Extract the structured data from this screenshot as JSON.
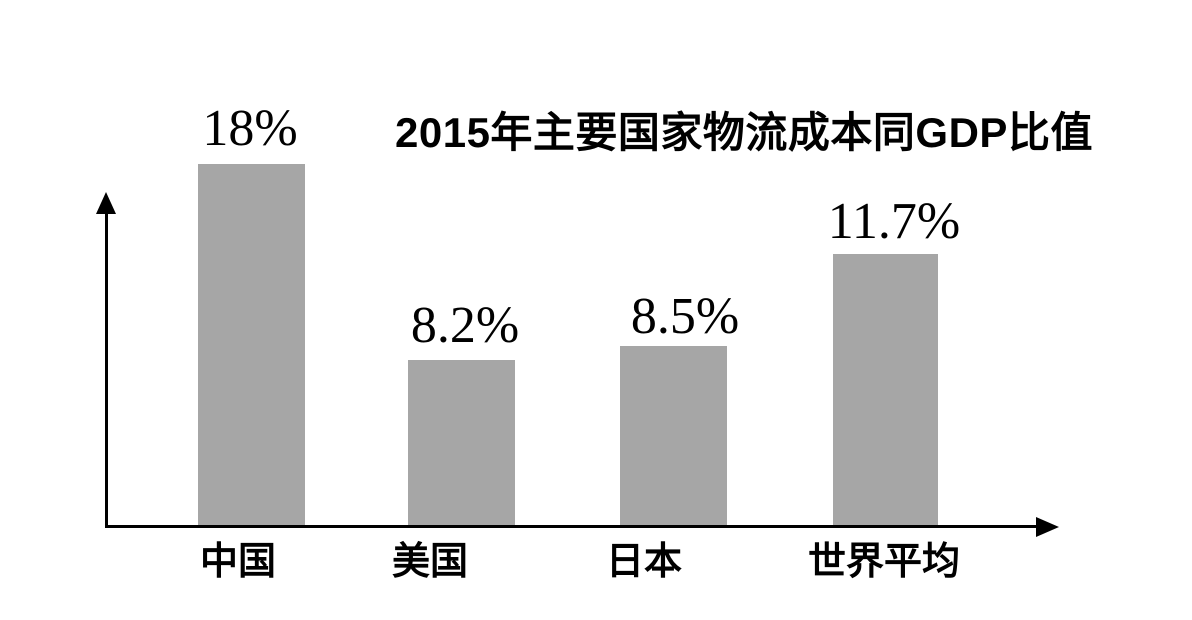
{
  "chart_data": {
    "type": "bar",
    "title": "2015年主要国家物流成本同GDP比值",
    "categories": [
      "中国",
      "美国",
      "日本",
      "世界平均"
    ],
    "values": [
      18,
      8.2,
      8.5,
      11.7
    ],
    "value_labels": [
      "18%",
      "8.2%",
      "8.5%",
      "11.7%"
    ],
    "unit": "%",
    "xlabel": "",
    "ylabel": "",
    "ylim": [
      0,
      20
    ],
    "grid": false,
    "legend": false,
    "axes": "arrow-style x and y axes, no tick marks, no tick labels",
    "bar_color": "#a6a6a6",
    "axis_color": "#000000",
    "text_color": "#000000",
    "background_color": "#ffffff"
  }
}
